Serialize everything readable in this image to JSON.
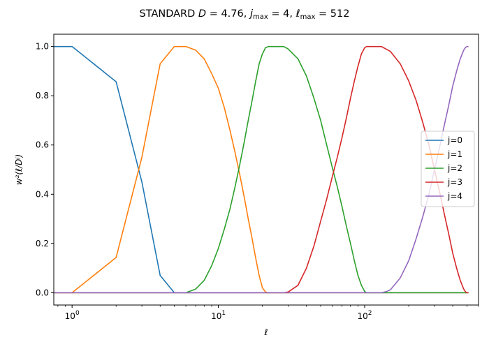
{
  "chart_data": {
    "type": "line",
    "title": "STANDARD D = 4.76,  j_max = 4,  ℓ_max = 512",
    "title_parts": {
      "prefix": "STANDARD ",
      "d_symbol": "D",
      "d_value": " = 4.76,  ",
      "j_symbol": "j",
      "j_sub": "max",
      "j_value": " = 4,  ",
      "l_symbol": "ℓ",
      "l_sub": "max",
      "l_value": " = 512"
    },
    "xlabel": "ℓ",
    "ylabel": "w²(ℓ/Dʲ)",
    "x_scale": "log",
    "xlim": [
      0.75,
      600
    ],
    "ylim": [
      -0.05,
      1.05
    ],
    "x_ticks": [
      {
        "value": 1,
        "base": "10",
        "exp": "0"
      },
      {
        "value": 10,
        "base": "10",
        "exp": "1"
      },
      {
        "value": 100,
        "base": "10",
        "exp": "2"
      }
    ],
    "y_ticks": [
      "0.0",
      "0.2",
      "0.4",
      "0.6",
      "0.8",
      "1.0"
    ],
    "legend_position": "center-right",
    "grid": false,
    "series": [
      {
        "name": "j=0",
        "color": "#1f77b4",
        "points": [
          [
            0,
            1
          ],
          [
            1,
            1
          ],
          [
            2,
            0.857
          ],
          [
            3,
            0.45
          ],
          [
            4,
            0.07
          ],
          [
            5,
            0
          ],
          [
            6,
            0
          ],
          [
            10,
            0
          ],
          [
            100,
            0
          ],
          [
            512,
            0
          ]
        ]
      },
      {
        "name": "j=1",
        "color": "#ff7f0e",
        "points": [
          [
            0,
            0
          ],
          [
            1,
            0
          ],
          [
            2,
            0.143
          ],
          [
            3,
            0.55
          ],
          [
            4,
            0.93
          ],
          [
            5,
            1
          ],
          [
            6,
            1
          ],
          [
            7,
            0.985
          ],
          [
            8,
            0.95
          ],
          [
            9,
            0.89
          ],
          [
            10,
            0.83
          ],
          [
            11,
            0.75
          ],
          [
            12,
            0.66
          ],
          [
            13,
            0.57
          ],
          [
            14,
            0.48
          ],
          [
            15,
            0.39
          ],
          [
            16,
            0.3
          ],
          [
            17,
            0.22
          ],
          [
            18,
            0.14
          ],
          [
            19,
            0.07
          ],
          [
            20,
            0.02
          ],
          [
            21,
            0.003
          ],
          [
            22,
            0
          ],
          [
            30,
            0
          ],
          [
            100,
            0
          ],
          [
            512,
            0
          ]
        ]
      },
      {
        "name": "j=2",
        "color": "#2ca02c",
        "points": [
          [
            0,
            0
          ],
          [
            1,
            0
          ],
          [
            6,
            0
          ],
          [
            7,
            0.015
          ],
          [
            8,
            0.05
          ],
          [
            9,
            0.11
          ],
          [
            10,
            0.18
          ],
          [
            11,
            0.26
          ],
          [
            12,
            0.34
          ],
          [
            13,
            0.43
          ],
          [
            14,
            0.52
          ],
          [
            15,
            0.61
          ],
          [
            16,
            0.7
          ],
          [
            17,
            0.78
          ],
          [
            18,
            0.86
          ],
          [
            19,
            0.93
          ],
          [
            20,
            0.97
          ],
          [
            21,
            0.995
          ],
          [
            22,
            1
          ],
          [
            28,
            1
          ],
          [
            30,
            0.99
          ],
          [
            35,
            0.95
          ],
          [
            40,
            0.88
          ],
          [
            45,
            0.79
          ],
          [
            50,
            0.7
          ],
          [
            55,
            0.6
          ],
          [
            60,
            0.51
          ],
          [
            65,
            0.43
          ],
          [
            70,
            0.35
          ],
          [
            75,
            0.27
          ],
          [
            80,
            0.2
          ],
          [
            85,
            0.13
          ],
          [
            90,
            0.07
          ],
          [
            95,
            0.03
          ],
          [
            100,
            0.005
          ],
          [
            103,
            0
          ],
          [
            150,
            0
          ],
          [
            512,
            0
          ]
        ]
      },
      {
        "name": "j=3",
        "color": "#d62728",
        "points": [
          [
            0,
            0
          ],
          [
            1,
            0
          ],
          [
            28,
            0
          ],
          [
            30,
            0.003
          ],
          [
            35,
            0.03
          ],
          [
            40,
            0.1
          ],
          [
            45,
            0.19
          ],
          [
            50,
            0.29
          ],
          [
            55,
            0.38
          ],
          [
            60,
            0.47
          ],
          [
            65,
            0.55
          ],
          [
            70,
            0.63
          ],
          [
            75,
            0.71
          ],
          [
            80,
            0.79
          ],
          [
            85,
            0.86
          ],
          [
            90,
            0.92
          ],
          [
            95,
            0.97
          ],
          [
            100,
            0.995
          ],
          [
            103,
            1
          ],
          [
            130,
            1
          ],
          [
            150,
            0.98
          ],
          [
            175,
            0.93
          ],
          [
            200,
            0.86
          ],
          [
            225,
            0.78
          ],
          [
            250,
            0.69
          ],
          [
            275,
            0.6
          ],
          [
            300,
            0.5
          ],
          [
            325,
            0.41
          ],
          [
            350,
            0.32
          ],
          [
            375,
            0.24
          ],
          [
            400,
            0.16
          ],
          [
            425,
            0.1
          ],
          [
            450,
            0.05
          ],
          [
            475,
            0.015
          ],
          [
            490,
            0.003
          ],
          [
            500,
            0
          ],
          [
            512,
            0
          ]
        ]
      },
      {
        "name": "j=4",
        "color": "#9467bd",
        "points": [
          [
            0,
            0
          ],
          [
            1,
            0
          ],
          [
            130,
            0
          ],
          [
            140,
            0.004
          ],
          [
            150,
            0.012
          ],
          [
            175,
            0.06
          ],
          [
            200,
            0.13
          ],
          [
            225,
            0.22
          ],
          [
            250,
            0.31
          ],
          [
            275,
            0.4
          ],
          [
            300,
            0.5
          ],
          [
            325,
            0.59
          ],
          [
            350,
            0.68
          ],
          [
            375,
            0.76
          ],
          [
            400,
            0.84
          ],
          [
            425,
            0.9
          ],
          [
            450,
            0.95
          ],
          [
            475,
            0.985
          ],
          [
            490,
            0.997
          ],
          [
            500,
            1
          ],
          [
            512,
            1
          ]
        ]
      }
    ]
  }
}
